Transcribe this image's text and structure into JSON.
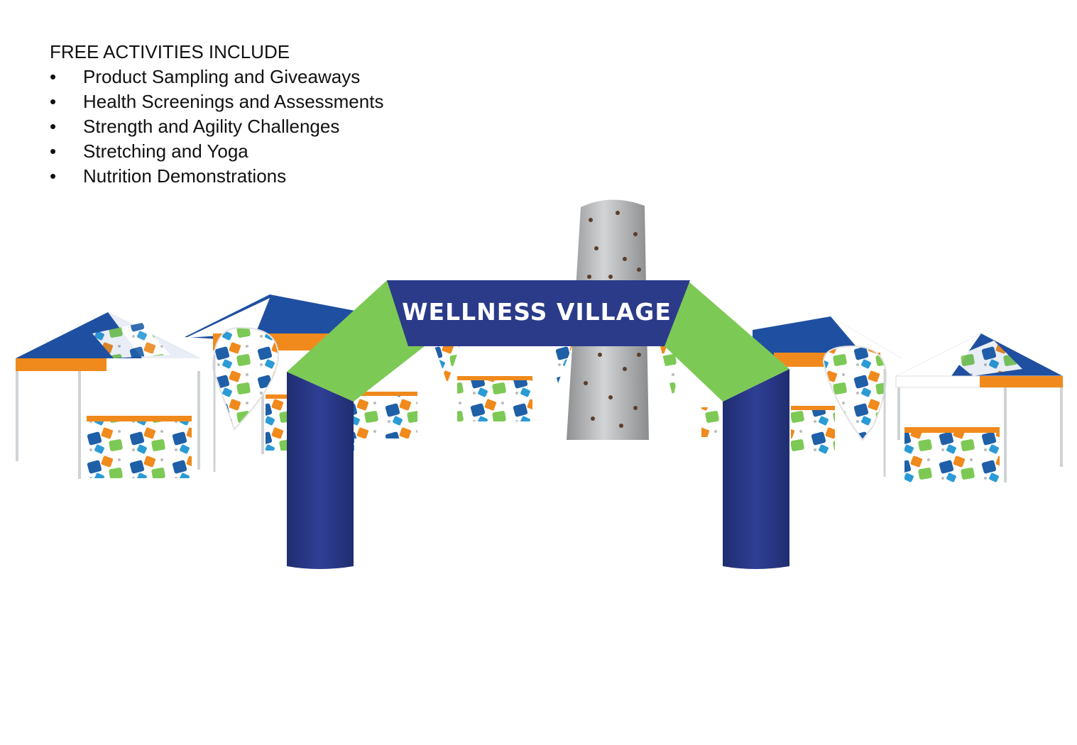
{
  "heading": "FREE ACTIVITIES INCLUDE",
  "activities": [
    "Product Sampling and Giveaways",
    "Health Screenings and Assessments",
    "Strength and Agility Challenges",
    "Stretching and Yoga",
    "Nutrition Demonstrations"
  ],
  "bullet": "•",
  "arch": {
    "title": "WELLNESS VILLAGE"
  },
  "colors": {
    "navy": "#2b3b8a",
    "green": "#7dc955",
    "orange": "#f08a1c",
    "blue": "#1f5fa8",
    "rock": "#b9bbbc"
  }
}
